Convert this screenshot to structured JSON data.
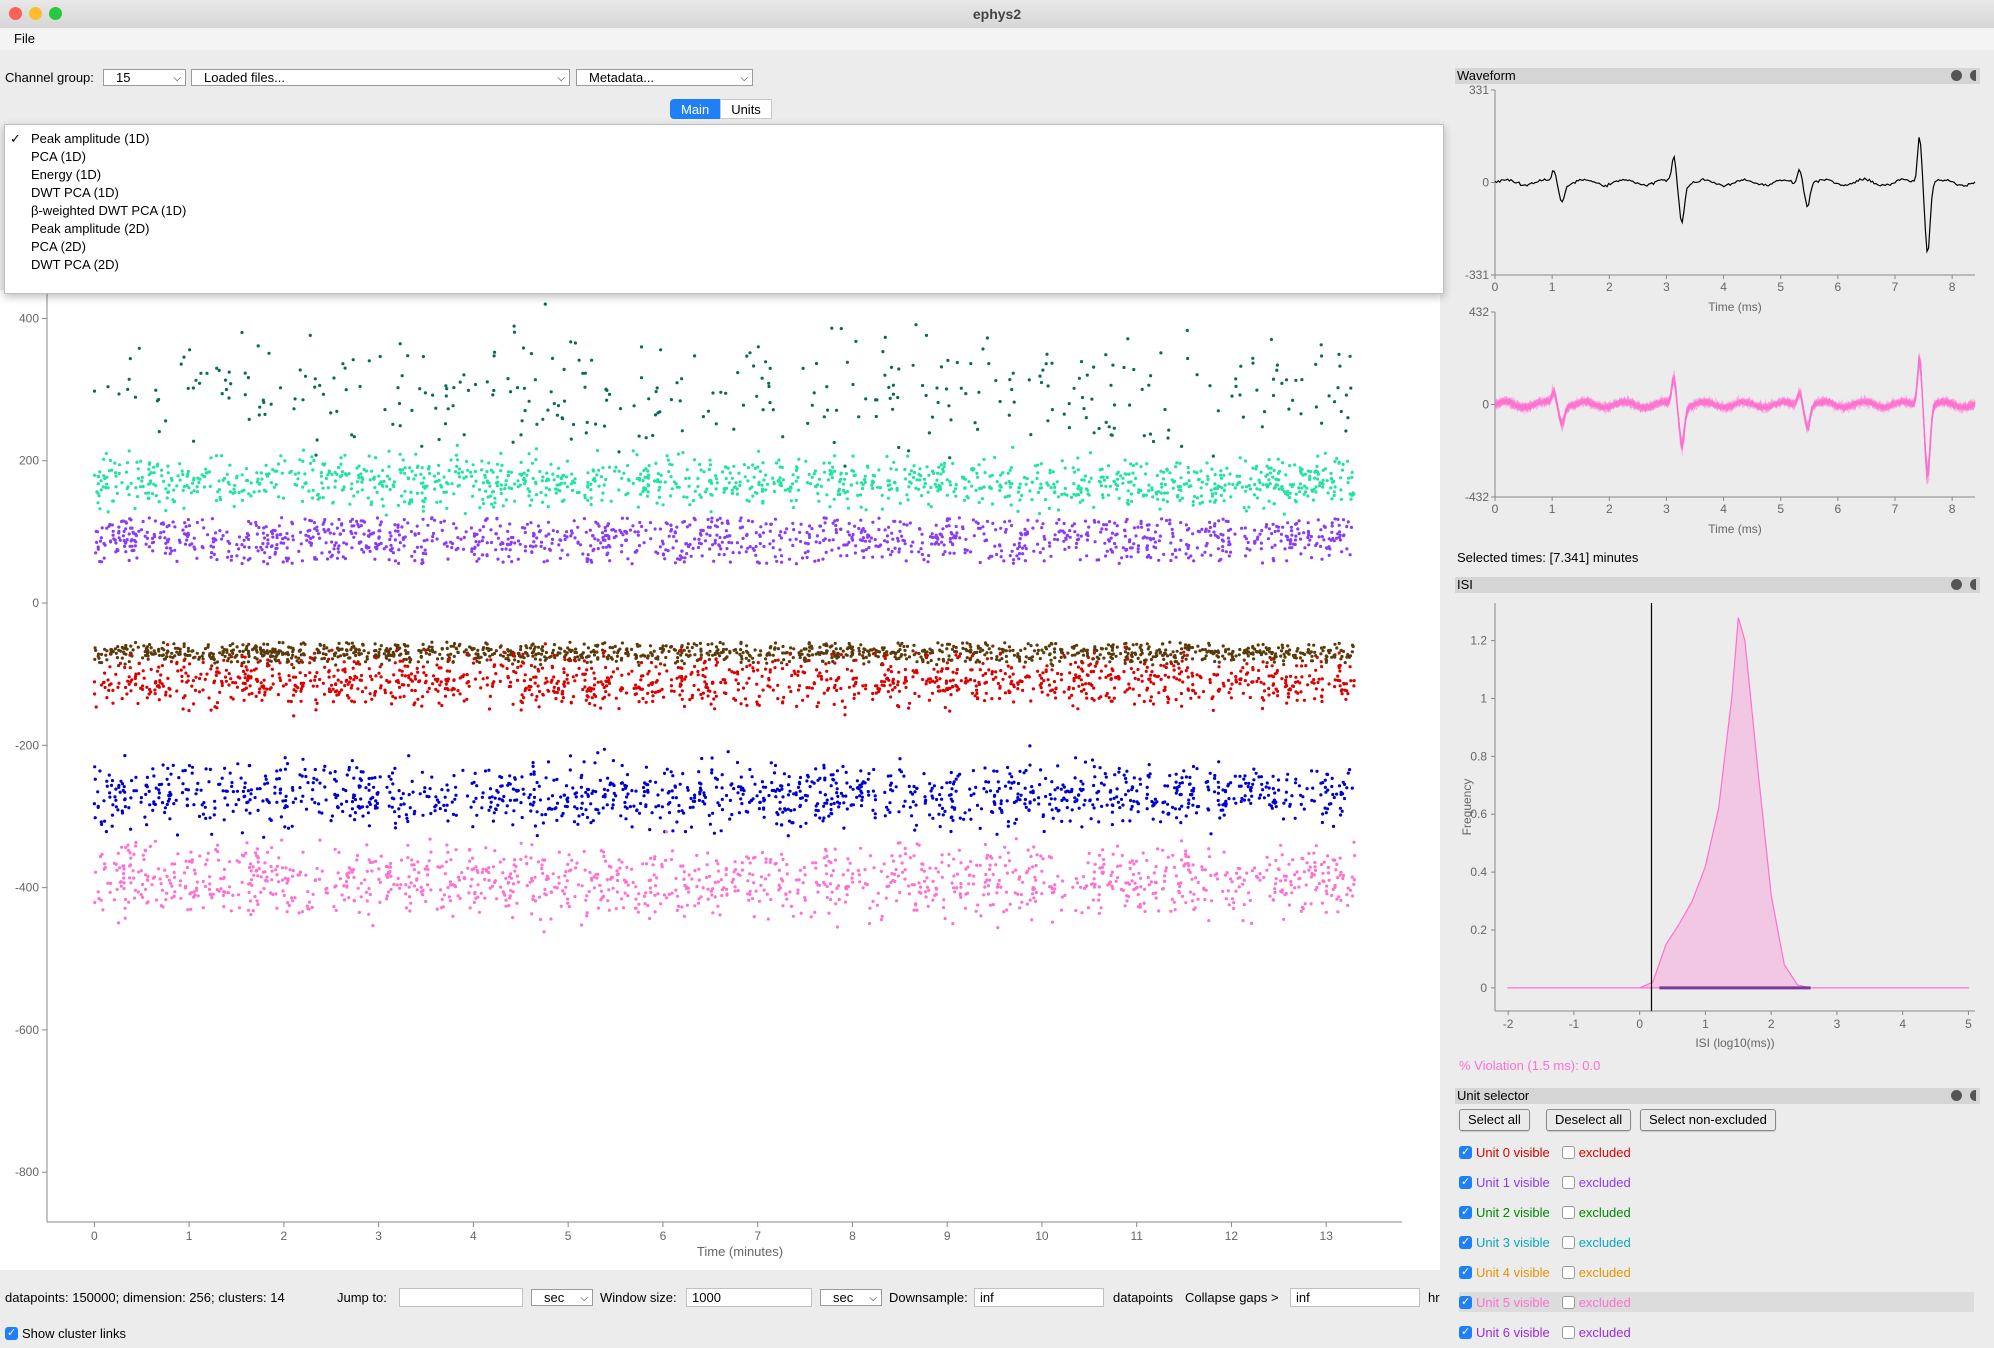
{
  "window": {
    "title": "ephys2"
  },
  "menu": {
    "file": "File"
  },
  "toolbar": {
    "channel_group_label": "Channel group:",
    "channel_group_value": "15",
    "loaded_files": "Loaded files...",
    "metadata": "Metadata..."
  },
  "tabs": [
    {
      "label": "Main",
      "active": true
    },
    {
      "label": "Units",
      "active": false
    }
  ],
  "feature_menu": {
    "checkmark": "✓",
    "items": [
      "Peak amplitude (1D)",
      "PCA (1D)",
      "Energy (1D)",
      "DWT PCA (1D)",
      "β-weighted DWT PCA (1D)",
      "Peak amplitude (2D)",
      "PCA (2D)",
      "DWT PCA (2D)"
    ],
    "selected_index": 0
  },
  "main_plot": {
    "xlabel": "Time (minutes)",
    "xticks": [
      "0",
      "1",
      "2",
      "3",
      "4",
      "5",
      "6",
      "7",
      "8",
      "9",
      "10",
      "11",
      "12",
      "13"
    ],
    "yticks": [
      "400",
      "200",
      "0",
      "-200",
      "-400",
      "-600",
      "-800"
    ],
    "xlim": [
      0,
      13.3
    ],
    "ylim": [
      -870,
      400
    ]
  },
  "chart_data": [
    {
      "type": "scatter",
      "title": "",
      "xlabel": "Time (minutes)",
      "ylabel": "",
      "xlim": [
        -0.5,
        13.8
      ],
      "ylim": [
        -870,
        440
      ],
      "series": [
        {
          "color": "#20e3a0",
          "x_range": [
            0,
            13.3
          ],
          "y_center": 170,
          "y_spread": 35
        },
        {
          "color": "#8a3cf5",
          "x_range": [
            0,
            13.3
          ],
          "y_center": 90,
          "y_spread": 35
        },
        {
          "color": "#0a6a5a",
          "x_range": [
            0,
            13.3
          ],
          "y_center": 300,
          "y_spread": 80
        },
        {
          "color": "#5a3a0a",
          "x_range": [
            0,
            13.3
          ],
          "y_center": -70,
          "y_spread": 15
        },
        {
          "color": "#dd0000",
          "x_range": [
            0,
            13.3
          ],
          "y_center": -110,
          "y_spread": 35
        },
        {
          "color": "#0000d0",
          "x_range": [
            0,
            13.3
          ],
          "y_center": -270,
          "y_spread": 45
        },
        {
          "color": "#ff70d0",
          "x_range": [
            0,
            13.3
          ],
          "y_center": -390,
          "y_spread": 50
        }
      ]
    },
    {
      "type": "line",
      "title": "Waveform",
      "xlabel": "Time (ms)",
      "xticks": [
        "0",
        "1",
        "2",
        "3",
        "4",
        "5",
        "6",
        "7",
        "8"
      ],
      "yticks": [
        "331",
        "0",
        "-331"
      ],
      "ylim": [
        -331,
        331
      ],
      "color": "#000000"
    },
    {
      "type": "line",
      "xlabel": "Time (ms)",
      "xticks": [
        "0",
        "1",
        "2",
        "3",
        "4",
        "5",
        "6",
        "7",
        "8"
      ],
      "yticks": [
        "432",
        "0",
        "-432"
      ],
      "ylim": [
        -432,
        432
      ],
      "color": "#ff70d0"
    },
    {
      "type": "area",
      "title": "ISI",
      "xlabel": "ISI (log10(ms))",
      "ylabel": "Frequency",
      "xticks": [
        "-2",
        "-1",
        "0",
        "1",
        "2",
        "3",
        "4",
        "5"
      ],
      "yticks": [
        "0",
        "0.2",
        "0.4",
        "0.6",
        "0.8",
        "1",
        "1.2"
      ],
      "xlim": [
        -2.2,
        5.1
      ],
      "ylim": [
        -0.08,
        1.33
      ],
      "x": [
        -2,
        0,
        0.2,
        0.4,
        0.6,
        0.8,
        1.0,
        1.2,
        1.4,
        1.5,
        1.6,
        1.8,
        2.0,
        2.2,
        2.4,
        2.6,
        3,
        5
      ],
      "y": [
        0,
        0,
        0.02,
        0.15,
        0.22,
        0.3,
        0.42,
        0.62,
        1.0,
        1.28,
        1.2,
        0.75,
        0.32,
        0.08,
        0.01,
        0,
        0,
        0
      ],
      "vline": 0.18,
      "color": "#ff70d0"
    }
  ],
  "panels": {
    "waveform_title": "Waveform",
    "isi_title": "ISI",
    "unit_selector_title": "Unit selector",
    "selected_times": "Selected times: [7.341] minutes",
    "violation": "% Violation (1.5 ms): 0.0"
  },
  "unit_selector": {
    "buttons": [
      "Select all",
      "Deselect all",
      "Select non-excluded"
    ],
    "units": [
      {
        "label": "Unit 0 visible",
        "excluded": "excluded",
        "color": "#dd0000"
      },
      {
        "label": "Unit 1 visible",
        "excluded": "excluded",
        "color": "#8a3cf5"
      },
      {
        "label": "Unit 2 visible",
        "excluded": "excluded",
        "color": "#008800"
      },
      {
        "label": "Unit 3 visible",
        "excluded": "excluded",
        "color": "#0aa8c0"
      },
      {
        "label": "Unit 4 visible",
        "excluded": "excluded",
        "color": "#e69400"
      },
      {
        "label": "Unit 5 visible",
        "excluded": "excluded",
        "color": "#ff70d0"
      },
      {
        "label": "Unit 6 visible",
        "excluded": "excluded",
        "color": "#9b2be0"
      }
    ]
  },
  "bottom_bar": {
    "stats": "datapoints: 150000; dimension: 256; clusters: 14",
    "jump_to": "Jump to:",
    "jump_unit": "sec",
    "window_size_label": "Window size:",
    "window_size_value": "1000",
    "window_unit": "sec",
    "downsample_label": "Downsample:",
    "downsample_value": "inf",
    "datapoints": "datapoints",
    "collapse_label": "Collapse gaps >",
    "collapse_value": "inf",
    "hr": "hr",
    "show_links": "Show cluster links"
  }
}
